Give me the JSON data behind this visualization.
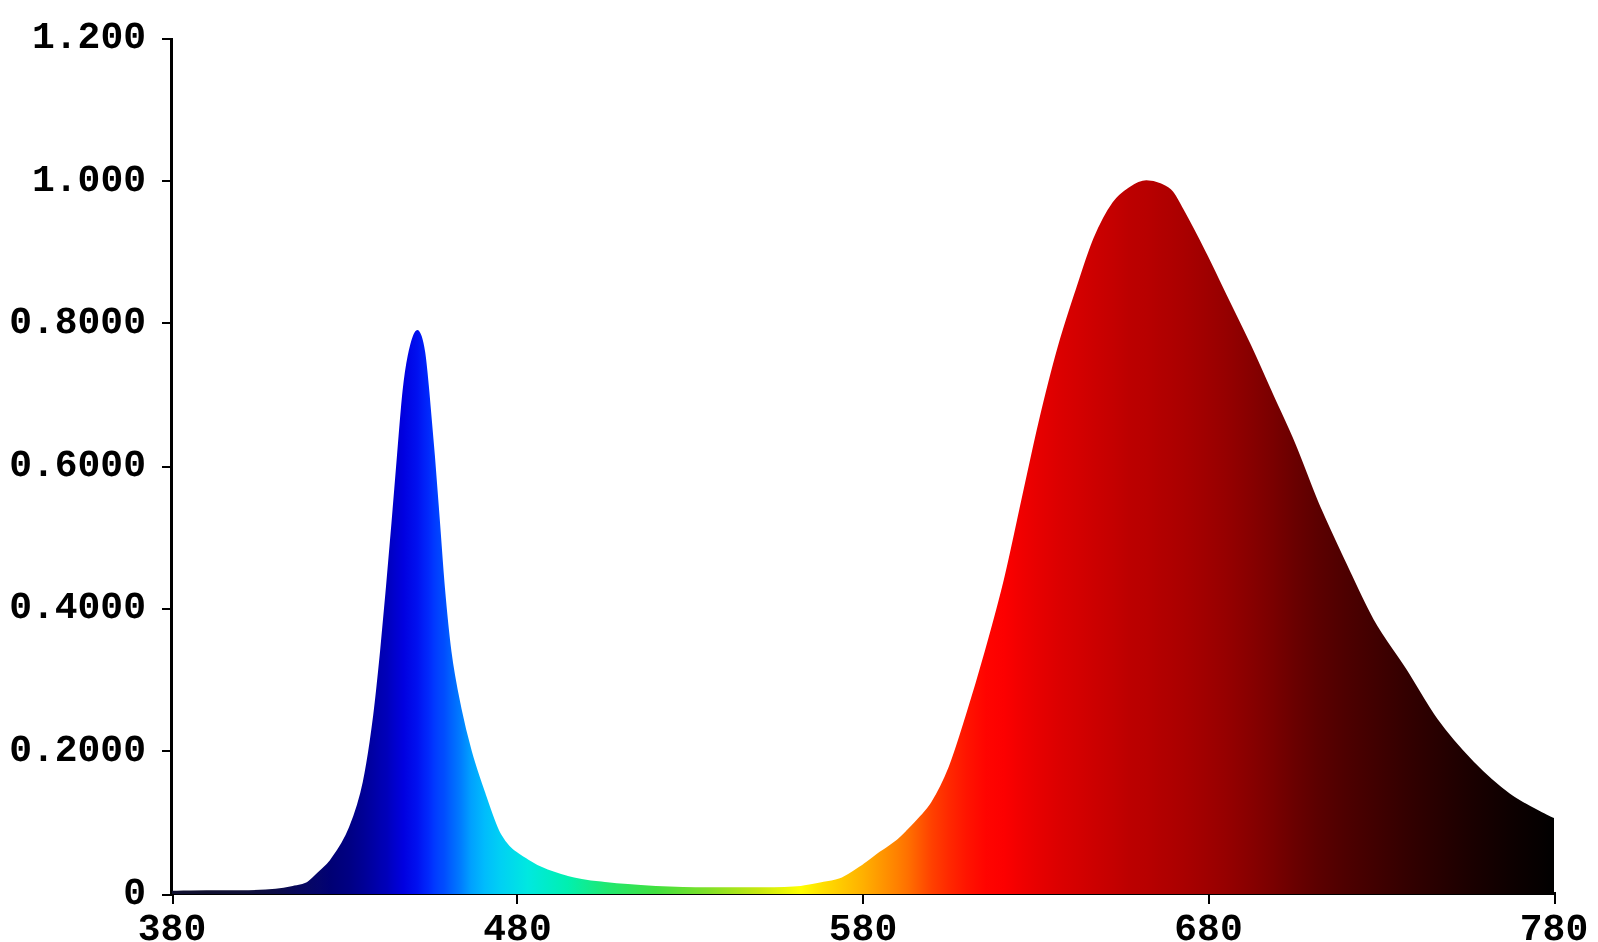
{
  "chart_data": {
    "type": "area",
    "x": [
      380,
      390,
      400,
      410,
      415,
      419,
      422.5,
      426,
      431.5,
      435.5,
      438.5,
      440.5,
      442.2,
      443.8,
      445.4,
      447,
      448.5,
      451,
      453,
      454.2,
      455.8,
      457.3,
      458.7,
      460.6,
      463.5,
      466.5,
      470.5,
      475,
      483,
      494.5,
      506,
      520,
      535,
      550,
      562,
      568,
      574,
      580,
      585,
      590,
      593,
      596.5,
      600,
      605,
      610,
      615.5,
      621,
      626,
      631,
      636.5,
      642,
      647,
      652.5,
      657,
      662,
      666,
      669.5,
      672.5,
      679,
      685,
      692,
      698.5,
      705,
      711.5,
      719.5,
      727.5,
      737,
      746,
      756.5,
      767,
      777,
      780
    ],
    "values": [
      0.003,
      0.004,
      0.004,
      0.006,
      0.01,
      0.015,
      0.03,
      0.047,
      0.093,
      0.157,
      0.25,
      0.34,
      0.43,
      0.52,
      0.615,
      0.705,
      0.755,
      0.79,
      0.76,
      0.705,
      0.615,
      0.52,
      0.43,
      0.34,
      0.26,
      0.2,
      0.14,
      0.083,
      0.047,
      0.024,
      0.015,
      0.01,
      0.008,
      0.008,
      0.01,
      0.015,
      0.022,
      0.04,
      0.058,
      0.075,
      0.089,
      0.107,
      0.128,
      0.177,
      0.25,
      0.34,
      0.44,
      0.55,
      0.66,
      0.765,
      0.85,
      0.92,
      0.97,
      0.99,
      1.0,
      0.996,
      0.985,
      0.96,
      0.9,
      0.84,
      0.77,
      0.7,
      0.63,
      0.55,
      0.465,
      0.385,
      0.315,
      0.245,
      0.185,
      0.14,
      0.112,
      0.105
    ],
    "colors": [
      "#101030",
      "#101030",
      "#101038",
      "#0c0c48",
      "#080858",
      "#060664",
      "#04046c",
      "#000074",
      "#000084",
      "#000096",
      "#0000a6",
      "#0000b2",
      "#0000ba",
      "#0000c8",
      "#0000d4",
      "#0000e0",
      "#0006e6",
      "#0010f0",
      "#0020f8",
      "#0028fc",
      "#0038ff",
      "#0044ff",
      "#004cff",
      "#0060ff",
      "#007cff",
      "#00a0ff",
      "#00bcfc",
      "#00d0f4",
      "#00e8e0",
      "#00f0b0",
      "#20e870",
      "#40e040",
      "#80e028",
      "#c8e810",
      "#ffff00",
      "#ffe000",
      "#ffc800",
      "#ffb000",
      "#ff9800",
      "#ff8000",
      "#ff7000",
      "#ff5800",
      "#ff4000",
      "#ff2800",
      "#ff1400",
      "#ff0400",
      "#fc0000",
      "#f00000",
      "#e60000",
      "#dc0000",
      "#d40000",
      "#cc0000",
      "#c40000",
      "#bc0000",
      "#b80000",
      "#b20000",
      "#ae0000",
      "#aa0000",
      "#a00000",
      "#960000",
      "#880000",
      "#7a0000",
      "#6a0000",
      "#5c0000",
      "#4e0000",
      "#420000",
      "#340000",
      "#280000",
      "#1a0000",
      "#0e0000",
      "#040000",
      "#000000"
    ],
    "xlim": [
      380,
      780
    ],
    "xticks": [
      380,
      480,
      580,
      680,
      780
    ],
    "ylim": [
      0,
      1.2
    ],
    "yticks": [
      0,
      {
        "value": 0.2,
        "label": "0.2000"
      },
      {
        "value": 0.4,
        "label": "0.4000"
      },
      {
        "value": 0.6,
        "label": "0.6000"
      },
      {
        "value": 0.8,
        "label": "0.8000"
      },
      {
        "value": 1,
        "label": "1.000"
      },
      {
        "value": 1.2,
        "label": "1.200"
      }
    ]
  }
}
